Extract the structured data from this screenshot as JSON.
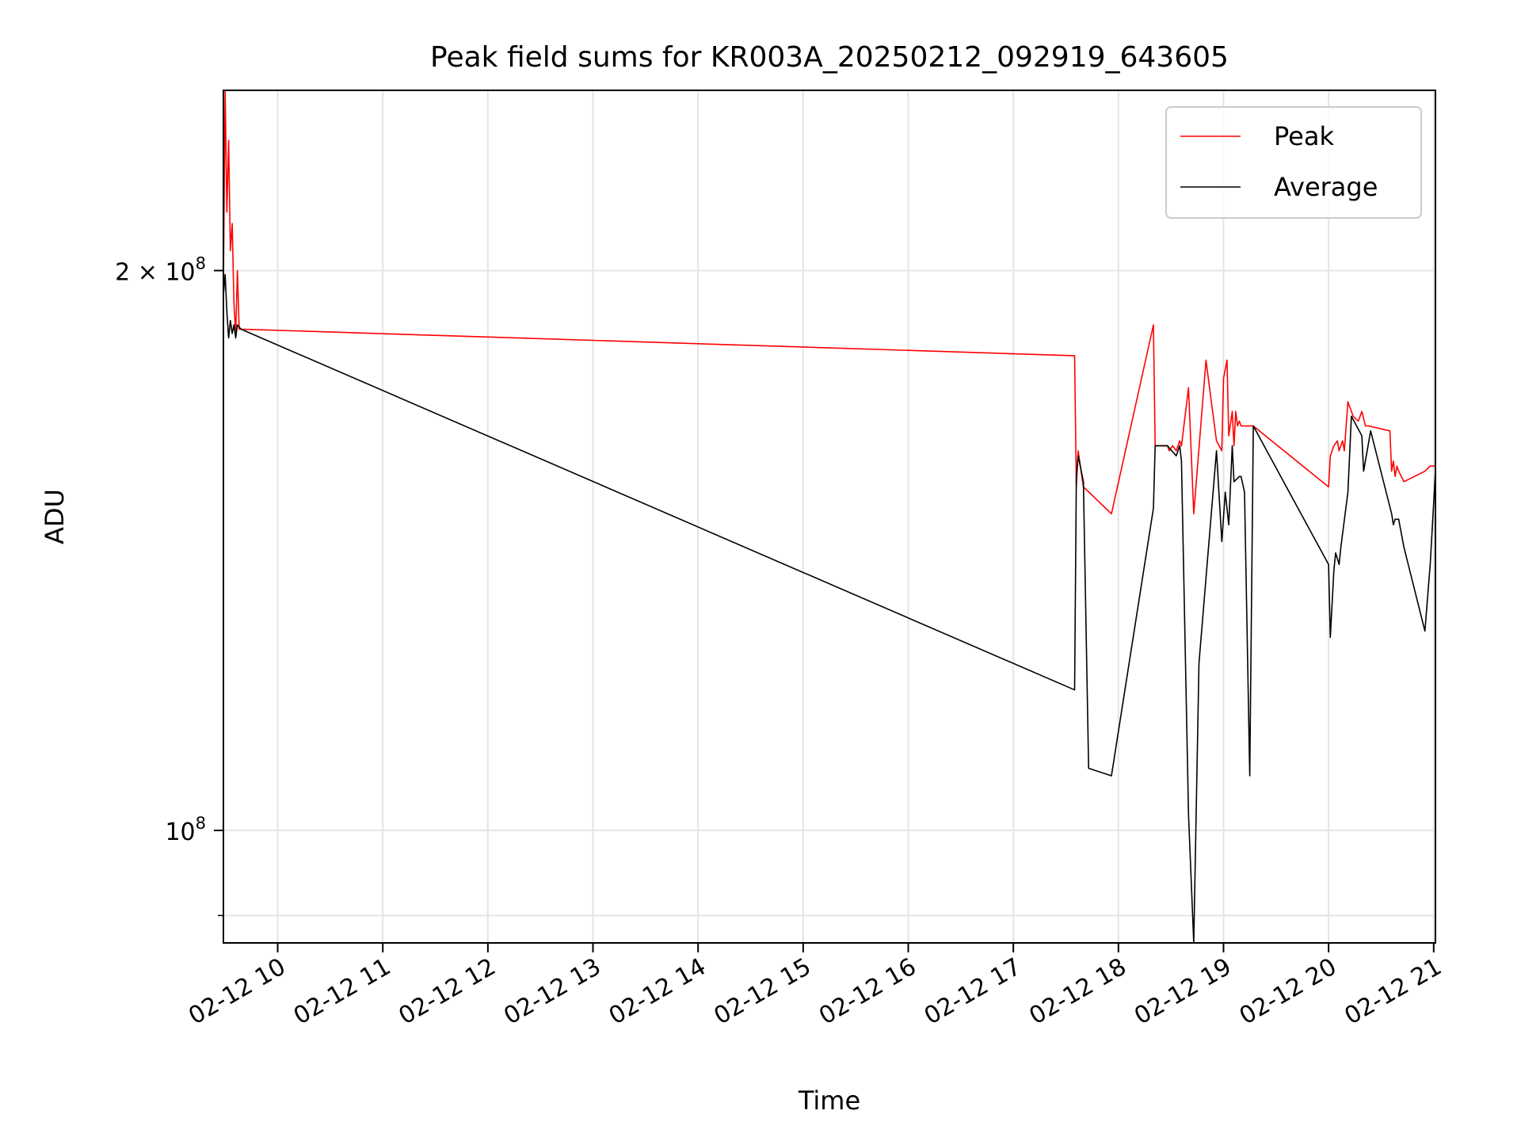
{
  "chart_data": {
    "type": "line",
    "title": "Peak field sums for KR003A_20250212_092919_643605",
    "xlabel": "Time",
    "ylabel": "ADU",
    "x_scale": "time",
    "y_scale": "log",
    "x_range": [
      "2025-02-12T09:29",
      "2025-02-12T21:01"
    ],
    "ylim": [
      87000000,
      250000000
    ],
    "x_tick_labels": [
      "02-12 10",
      "02-12 11",
      "02-12 12",
      "02-12 13",
      "02-12 14",
      "02-12 15",
      "02-12 16",
      "02-12 17",
      "02-12 18",
      "02-12 19",
      "02-12 20",
      "02-12 21"
    ],
    "x_tick_values": [
      "2025-02-12T10:00",
      "2025-02-12T11:00",
      "2025-02-12T12:00",
      "2025-02-12T13:00",
      "2025-02-12T14:00",
      "2025-02-12T15:00",
      "2025-02-12T16:00",
      "2025-02-12T17:00",
      "2025-02-12T18:00",
      "2025-02-12T19:00",
      "2025-02-12T20:00",
      "2025-02-12T21:00"
    ],
    "y_ticks": [
      {
        "value": 100000000,
        "base": "10",
        "exp": "8",
        "coef": ""
      },
      {
        "value": 200000000,
        "base": "10",
        "exp": "8",
        "coef": "2 × "
      }
    ],
    "y_minor_ticks": [
      90000000
    ],
    "grid": true,
    "legend_position": "top-right",
    "series": [
      {
        "name": "Peak",
        "color": "#ff0000",
        "points": [
          [
            "2025-02-12T09:29",
            196000000
          ],
          [
            "2025-02-12T09:30",
            250000000
          ],
          [
            "2025-02-12T09:31",
            215000000
          ],
          [
            "2025-02-12T09:32",
            235000000
          ],
          [
            "2025-02-12T09:33",
            205000000
          ],
          [
            "2025-02-12T09:34",
            212000000
          ],
          [
            "2025-02-12T09:35",
            192000000
          ],
          [
            "2025-02-12T09:36",
            185000000
          ],
          [
            "2025-02-12T09:37",
            200000000
          ],
          [
            "2025-02-12T09:38",
            186000000
          ],
          [
            "2025-02-12T09:39",
            186000000
          ],
          [
            "2025-02-12T17:35",
            180000000
          ],
          [
            "2025-02-12T17:36",
            153000000
          ],
          [
            "2025-02-12T17:37",
            160000000
          ],
          [
            "2025-02-12T17:40",
            153000000
          ],
          [
            "2025-02-12T17:56",
            148000000
          ],
          [
            "2025-02-12T18:20",
            187000000
          ],
          [
            "2025-02-12T18:21",
            161000000
          ],
          [
            "2025-02-12T18:28",
            161000000
          ],
          [
            "2025-02-12T18:29",
            160000000
          ],
          [
            "2025-02-12T18:31",
            161000000
          ],
          [
            "2025-02-12T18:33",
            160000000
          ],
          [
            "2025-02-12T18:35",
            162000000
          ],
          [
            "2025-02-12T18:36",
            161000000
          ],
          [
            "2025-02-12T18:40",
            173000000
          ],
          [
            "2025-02-12T18:43",
            148000000
          ],
          [
            "2025-02-12T18:50",
            179000000
          ],
          [
            "2025-02-12T18:52",
            173000000
          ],
          [
            "2025-02-12T18:56",
            162000000
          ],
          [
            "2025-02-12T18:59",
            160000000
          ],
          [
            "2025-02-12T19:00",
            175000000
          ],
          [
            "2025-02-12T19:02",
            179000000
          ],
          [
            "2025-02-12T19:03",
            163000000
          ],
          [
            "2025-02-12T19:05",
            168000000
          ],
          [
            "2025-02-12T19:06",
            161000000
          ],
          [
            "2025-02-12T19:07",
            168000000
          ],
          [
            "2025-02-12T19:08",
            165000000
          ],
          [
            "2025-02-12T19:09",
            166000000
          ],
          [
            "2025-02-12T19:10",
            165000000
          ],
          [
            "2025-02-12T19:17",
            165000000
          ],
          [
            "2025-02-12T20:00",
            153000000
          ],
          [
            "2025-02-12T20:01",
            159000000
          ],
          [
            "2025-02-12T20:03",
            161000000
          ],
          [
            "2025-02-12T20:05",
            162000000
          ],
          [
            "2025-02-12T20:06",
            160000000
          ],
          [
            "2025-02-12T20:08",
            162000000
          ],
          [
            "2025-02-12T20:09",
            160000000
          ],
          [
            "2025-02-12T20:11",
            170000000
          ],
          [
            "2025-02-12T20:14",
            167000000
          ],
          [
            "2025-02-12T20:17",
            166000000
          ],
          [
            "2025-02-12T20:19",
            168000000
          ],
          [
            "2025-02-12T20:21",
            165000000
          ],
          [
            "2025-02-12T20:23",
            165000000
          ],
          [
            "2025-02-12T20:35",
            164000000
          ],
          [
            "2025-02-12T20:36",
            156000000
          ],
          [
            "2025-02-12T20:37",
            158000000
          ],
          [
            "2025-02-12T20:38",
            155000000
          ],
          [
            "2025-02-12T20:39",
            157000000
          ],
          [
            "2025-02-12T20:40",
            156000000
          ],
          [
            "2025-02-12T20:43",
            154000000
          ],
          [
            "2025-02-12T20:55",
            156000000
          ],
          [
            "2025-02-12T20:58",
            157000000
          ],
          [
            "2025-02-12T21:01",
            157000000
          ]
        ]
      },
      {
        "name": "Average",
        "color": "#000000",
        "points": [
          [
            "2025-02-12T09:29",
            194000000
          ],
          [
            "2025-02-12T09:30",
            199000000
          ],
          [
            "2025-02-12T09:31",
            190000000
          ],
          [
            "2025-02-12T09:32",
            184000000
          ],
          [
            "2025-02-12T09:33",
            188000000
          ],
          [
            "2025-02-12T09:34",
            185000000
          ],
          [
            "2025-02-12T09:35",
            187000000
          ],
          [
            "2025-02-12T09:36",
            184000000
          ],
          [
            "2025-02-12T09:37",
            187000000
          ],
          [
            "2025-02-12T09:39",
            186000000
          ],
          [
            "2025-02-12T17:35",
            119000000
          ],
          [
            "2025-02-12T17:36",
            155000000
          ],
          [
            "2025-02-12T17:37",
            159000000
          ],
          [
            "2025-02-12T17:40",
            154000000
          ],
          [
            "2025-02-12T17:43",
            108000000
          ],
          [
            "2025-02-12T17:56",
            107000000
          ],
          [
            "2025-02-12T18:20",
            149000000
          ],
          [
            "2025-02-12T18:21",
            161000000
          ],
          [
            "2025-02-12T18:28",
            161000000
          ],
          [
            "2025-02-12T18:33",
            159000000
          ],
          [
            "2025-02-12T18:35",
            161000000
          ],
          [
            "2025-02-12T18:36",
            158000000
          ],
          [
            "2025-02-12T18:40",
            102000000
          ],
          [
            "2025-02-12T18:43",
            87000000
          ],
          [
            "2025-02-12T18:46",
            123000000
          ],
          [
            "2025-02-12T18:56",
            160000000
          ],
          [
            "2025-02-12T18:59",
            143000000
          ],
          [
            "2025-02-12T19:01",
            152000000
          ],
          [
            "2025-02-12T19:03",
            146000000
          ],
          [
            "2025-02-12T19:05",
            161000000
          ],
          [
            "2025-02-12T19:06",
            154000000
          ],
          [
            "2025-02-12T19:09",
            155000000
          ],
          [
            "2025-02-12T19:10",
            155000000
          ],
          [
            "2025-02-12T19:12",
            152000000
          ],
          [
            "2025-02-12T19:15",
            107000000
          ],
          [
            "2025-02-12T19:17",
            165000000
          ],
          [
            "2025-02-12T20:00",
            139000000
          ],
          [
            "2025-02-12T20:01",
            127000000
          ],
          [
            "2025-02-12T20:03",
            138000000
          ],
          [
            "2025-02-12T20:04",
            141000000
          ],
          [
            "2025-02-12T20:05",
            140000000
          ],
          [
            "2025-02-12T20:06",
            139000000
          ],
          [
            "2025-02-12T20:07",
            142000000
          ],
          [
            "2025-02-12T20:11",
            152000000
          ],
          [
            "2025-02-12T20:13",
            167000000
          ],
          [
            "2025-02-12T20:19",
            163000000
          ],
          [
            "2025-02-12T20:20",
            156000000
          ],
          [
            "2025-02-12T20:24",
            164000000
          ],
          [
            "2025-02-12T20:36",
            148000000
          ],
          [
            "2025-02-12T20:37",
            146000000
          ],
          [
            "2025-02-12T20:38",
            147000000
          ],
          [
            "2025-02-12T20:40",
            147000000
          ],
          [
            "2025-02-12T20:43",
            142000000
          ],
          [
            "2025-02-12T20:55",
            128000000
          ],
          [
            "2025-02-12T20:58",
            139000000
          ],
          [
            "2025-02-12T21:01",
            156000000
          ]
        ]
      }
    ]
  }
}
